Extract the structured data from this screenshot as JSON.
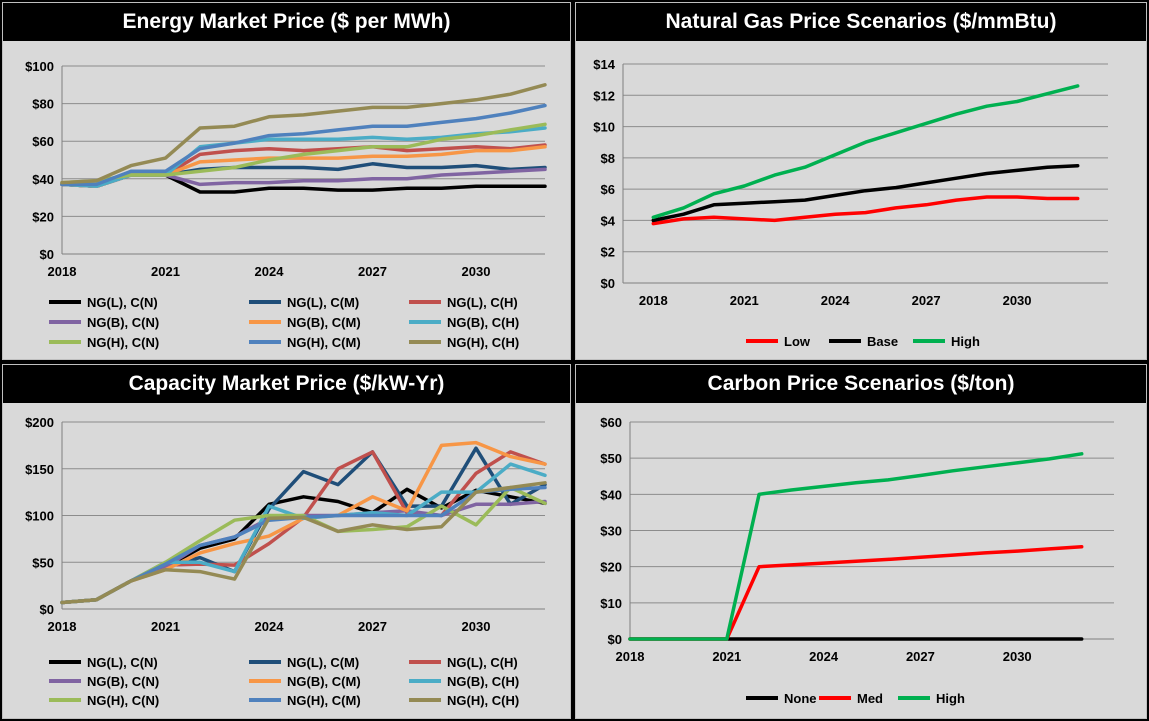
{
  "chart_data": [
    {
      "type": "line",
      "title": "Energy Market Price ($ per MWh)",
      "ylim": [
        0,
        100
      ],
      "yticks": [
        "$0",
        "$20",
        "$40",
        "$60",
        "$80",
        "$100"
      ],
      "ytick_values": [
        0,
        20,
        40,
        60,
        80,
        100
      ],
      "xlim": [
        2018,
        2032
      ],
      "xticks": [
        "2018",
        "2021",
        "2024",
        "2027",
        "2030"
      ],
      "xtick_values": [
        2018,
        2021,
        2024,
        2027,
        2030
      ],
      "grid": true,
      "legend": "bottom",
      "x": [
        2018,
        2019,
        2020,
        2021,
        2022,
        2023,
        2024,
        2025,
        2026,
        2027,
        2028,
        2029,
        2030,
        2031,
        2032
      ],
      "series": [
        {
          "name": "NG(L), C(N)",
          "color": "#000000",
          "values": [
            37,
            36,
            42,
            42,
            33,
            33,
            35,
            35,
            34,
            34,
            35,
            35,
            36,
            36,
            36
          ]
        },
        {
          "name": "NG(L), C(M)",
          "color": "#1f4e79",
          "values": [
            37,
            36,
            42,
            42,
            45,
            46,
            46,
            46,
            45,
            48,
            46,
            46,
            47,
            45,
            46
          ]
        },
        {
          "name": "NG(L), C(H)",
          "color": "#c0504d",
          "values": [
            37,
            36,
            42,
            42,
            53,
            55,
            56,
            55,
            56,
            57,
            55,
            56,
            57,
            56,
            58
          ]
        },
        {
          "name": "NG(B), C(N)",
          "color": "#8064a2",
          "values": [
            37,
            36,
            42,
            42,
            37,
            38,
            38,
            39,
            39,
            40,
            40,
            42,
            43,
            44,
            45
          ]
        },
        {
          "name": "NG(B), C(M)",
          "color": "#f79646",
          "values": [
            37,
            36,
            42,
            42,
            49,
            50,
            51,
            51,
            51,
            52,
            52,
            53,
            55,
            55,
            57
          ]
        },
        {
          "name": "NG(B), C(H)",
          "color": "#4bacc6",
          "values": [
            37,
            36,
            42,
            42,
            57,
            59,
            61,
            61,
            61,
            62,
            61,
            62,
            64,
            65,
            67
          ]
        },
        {
          "name": "NG(H), C(N)",
          "color": "#9bbb59",
          "values": [
            38,
            39,
            42,
            42,
            44,
            46,
            50,
            53,
            55,
            57,
            57,
            61,
            63,
            66,
            69
          ]
        },
        {
          "name": "NG(H), C(M)",
          "color": "#4f81bd",
          "values": [
            37,
            37,
            44,
            44,
            56,
            59,
            63,
            64,
            66,
            68,
            68,
            70,
            72,
            75,
            79
          ]
        },
        {
          "name": "NG(H), C(H)",
          "color": "#948a54",
          "values": [
            38,
            39,
            47,
            51,
            67,
            68,
            73,
            74,
            76,
            78,
            78,
            80,
            82,
            85,
            90
          ]
        }
      ]
    },
    {
      "type": "line",
      "title": "Natural Gas Price Scenarios ($/mmBtu)",
      "ylim": [
        0,
        14
      ],
      "yticks": [
        "$0",
        "$2",
        "$4",
        "$6",
        "$8",
        "$10",
        "$12",
        "$14"
      ],
      "ytick_values": [
        0,
        2,
        4,
        6,
        8,
        10,
        12,
        14
      ],
      "xlim": [
        2017,
        2033
      ],
      "xticks": [
        "2018",
        "2021",
        "2024",
        "2027",
        "2030"
      ],
      "xtick_values": [
        2018,
        2021,
        2024,
        2027,
        2030
      ],
      "grid": true,
      "legend": "bottom",
      "x": [
        2018,
        2019,
        2020,
        2021,
        2022,
        2023,
        2024,
        2025,
        2026,
        2027,
        2028,
        2029,
        2030,
        2031,
        2032
      ],
      "series": [
        {
          "name": "Low",
          "color": "#ff0000",
          "values": [
            3.8,
            4.1,
            4.2,
            4.1,
            4.0,
            4.2,
            4.4,
            4.5,
            4.8,
            5.0,
            5.3,
            5.5,
            5.5,
            5.4,
            5.4
          ]
        },
        {
          "name": "Base",
          "color": "#000000",
          "values": [
            4.0,
            4.4,
            5.0,
            5.1,
            5.2,
            5.3,
            5.6,
            5.9,
            6.1,
            6.4,
            6.7,
            7.0,
            7.2,
            7.4,
            7.5
          ]
        },
        {
          "name": "High",
          "color": "#00b050",
          "values": [
            4.2,
            4.8,
            5.7,
            6.2,
            6.9,
            7.4,
            8.2,
            9.0,
            9.6,
            10.2,
            10.8,
            11.3,
            11.6,
            12.1,
            12.6
          ]
        }
      ]
    },
    {
      "type": "line",
      "title": "Capacity Market Price ($/kW-Yr)",
      "ylim": [
        0,
        200
      ],
      "yticks": [
        "$0",
        "$50",
        "$100",
        "$150",
        "$200"
      ],
      "ytick_values": [
        0,
        50,
        100,
        150,
        200
      ],
      "xlim": [
        2018,
        2032
      ],
      "xticks": [
        "2018",
        "2021",
        "2024",
        "2027",
        "2030"
      ],
      "xtick_values": [
        2018,
        2021,
        2024,
        2027,
        2030
      ],
      "grid": true,
      "legend": "bottom",
      "x": [
        2018,
        2019,
        2020,
        2021,
        2022,
        2023,
        2024,
        2025,
        2026,
        2027,
        2028,
        2029,
        2030,
        2031,
        2032
      ],
      "series": [
        {
          "name": "NG(L), C(N)",
          "color": "#000000",
          "values": [
            7,
            10,
            30,
            45,
            65,
            75,
            112,
            120,
            115,
            103,
            128,
            108,
            127,
            120,
            113
          ]
        },
        {
          "name": "NG(L), C(M)",
          "color": "#1f4e79",
          "values": [
            7,
            10,
            30,
            45,
            55,
            40,
            107,
            147,
            133,
            168,
            110,
            110,
            172,
            112,
            133
          ]
        },
        {
          "name": "NG(L), C(H)",
          "color": "#c0504d",
          "values": [
            7,
            10,
            30,
            47,
            48,
            47,
            70,
            98,
            150,
            168,
            103,
            100,
            145,
            168,
            155
          ]
        },
        {
          "name": "NG(B), C(N)",
          "color": "#8064a2",
          "values": [
            7,
            10,
            30,
            45,
            68,
            77,
            97,
            100,
            100,
            103,
            105,
            100,
            112,
            112,
            115
          ]
        },
        {
          "name": "NG(B), C(M)",
          "color": "#f79646",
          "values": [
            7,
            10,
            30,
            42,
            60,
            70,
            78,
            97,
            100,
            120,
            105,
            175,
            178,
            163,
            155
          ]
        },
        {
          "name": "NG(B), C(H)",
          "color": "#4bacc6",
          "values": [
            7,
            10,
            30,
            50,
            50,
            40,
            110,
            97,
            100,
            103,
            100,
            125,
            125,
            155,
            143
          ]
        },
        {
          "name": "NG(H), C(N)",
          "color": "#9bbb59",
          "values": [
            7,
            10,
            30,
            50,
            73,
            95,
            100,
            100,
            83,
            85,
            88,
            110,
            90,
            130,
            113
          ]
        },
        {
          "name": "NG(H), C(M)",
          "color": "#4f81bd",
          "values": [
            7,
            10,
            30,
            48,
            68,
            77,
            95,
            98,
            100,
            100,
            100,
            100,
            125,
            128,
            130
          ]
        },
        {
          "name": "NG(H), C(H)",
          "color": "#948a54",
          "values": [
            7,
            10,
            30,
            42,
            40,
            32,
            97,
            98,
            83,
            90,
            85,
            88,
            125,
            130,
            135
          ]
        }
      ]
    },
    {
      "type": "line",
      "title": "Carbon Price Scenarios ($/ton)",
      "ylim": [
        0,
        60
      ],
      "yticks": [
        "$0",
        "$10",
        "$20",
        "$30",
        "$40",
        "$50",
        "$60"
      ],
      "ytick_values": [
        0,
        10,
        20,
        30,
        40,
        50,
        60
      ],
      "xlim": [
        2018,
        2033
      ],
      "xticks": [
        "2018",
        "2021",
        "2024",
        "2027",
        "2030"
      ],
      "xtick_values": [
        2018,
        2021,
        2024,
        2027,
        2030
      ],
      "grid": true,
      "legend": "bottom",
      "x": [
        2018,
        2019,
        2020,
        2021,
        2022,
        2023,
        2024,
        2025,
        2026,
        2027,
        2028,
        2029,
        2030,
        2031,
        2032
      ],
      "series": [
        {
          "name": "None",
          "color": "#000000",
          "values": [
            0,
            0,
            0,
            0,
            0,
            0,
            0,
            0,
            0,
            0,
            0,
            0,
            0,
            0,
            0
          ]
        },
        {
          "name": "Med",
          "color": "#ff0000",
          "values": [
            0,
            0,
            0,
            0,
            20,
            20.5,
            21,
            21.5,
            22,
            22.6,
            23.2,
            23.8,
            24.3,
            24.9,
            25.5
          ]
        },
        {
          "name": "High",
          "color": "#00b050",
          "values": [
            0,
            0,
            0,
            0,
            40,
            41.2,
            42.2,
            43.2,
            44,
            45.2,
            46.5,
            47.6,
            48.7,
            49.8,
            51.2
          ]
        }
      ]
    }
  ]
}
